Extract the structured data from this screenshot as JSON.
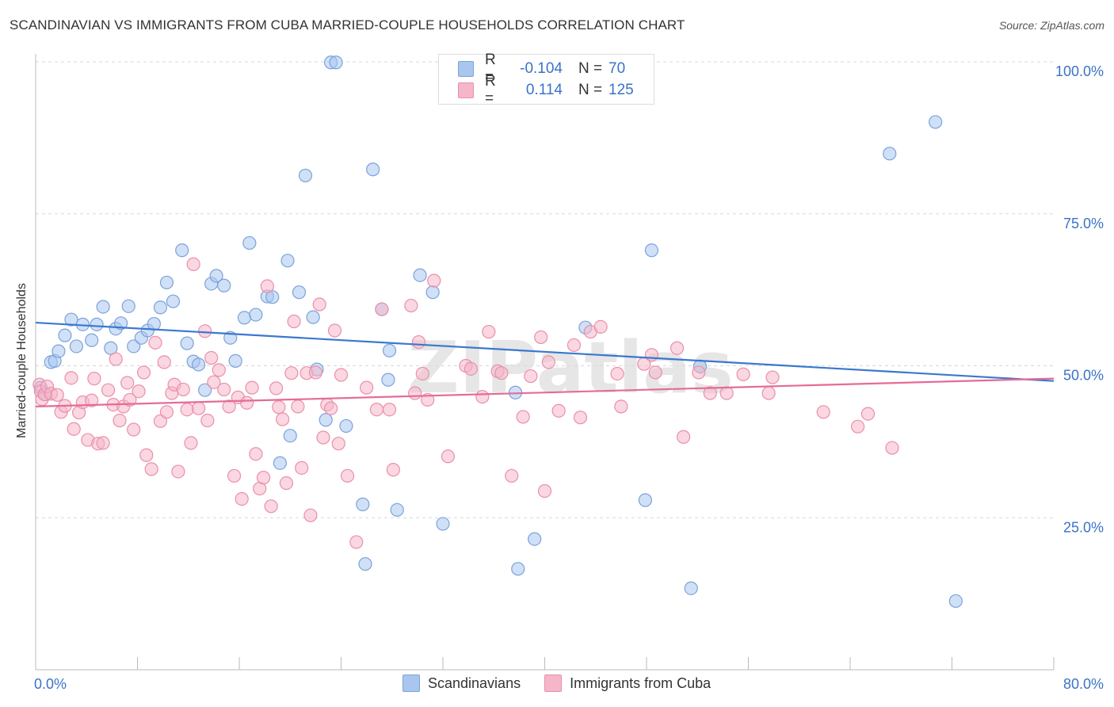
{
  "title": "SCANDINAVIAN VS IMMIGRANTS FROM CUBA MARRIED-COUPLE HOUSEHOLDS CORRELATION CHART",
  "source": "Source: ZipAtlas.com",
  "watermark": "ZIPatlas",
  "legend_stats": [
    {
      "r_label": "R =",
      "r_value": "-0.104",
      "n_label": "N =",
      "n_value": "70"
    },
    {
      "r_label": "R =",
      "r_value": "0.114",
      "n_label": "N =",
      "n_value": "125"
    }
  ],
  "legend_bottom": [
    "Scandinavians",
    "Immigrants from Cuba"
  ],
  "colors": {
    "blue_fill": "#a9c6ee",
    "blue_stroke": "#7aa3db",
    "blue_line": "#3a78d0",
    "pink_fill": "#f5b6c9",
    "pink_stroke": "#ea8fab",
    "pink_line": "#e56b98",
    "axis_text": "#3a73c7",
    "grid": "#d8d8d8"
  },
  "chart_data": {
    "type": "scatter",
    "title": "SCANDINAVIAN VS IMMIGRANTS FROM CUBA MARRIED-COUPLE HOUSEHOLDS CORRELATION CHART",
    "xlabel": "",
    "ylabel": "Married-couple Households",
    "xlim": [
      0,
      80
    ],
    "ylim": [
      0,
      100
    ],
    "x_tick_labels": [
      "0.0%",
      "80.0%"
    ],
    "y_tick_labels": [
      "25.0%",
      "50.0%",
      "75.0%",
      "100.0%"
    ],
    "y_ticks": [
      25,
      50,
      75,
      100
    ],
    "grid": true,
    "legend_position": "top-center",
    "series": [
      {
        "name": "Scandinavians",
        "color": "#a9c6ee",
        "trend": {
          "x": [
            0,
            80
          ],
          "y": [
            57.1,
            47.5
          ]
        },
        "points": [
          [
            0.4,
            46.4
          ],
          [
            0.8,
            45.3
          ],
          [
            1.2,
            50.6
          ],
          [
            1.5,
            50.8
          ],
          [
            1.8,
            52.4
          ],
          [
            2.3,
            55.0
          ],
          [
            2.8,
            57.6
          ],
          [
            3.2,
            53.2
          ],
          [
            3.7,
            56.8
          ],
          [
            4.4,
            54.2
          ],
          [
            4.8,
            56.8
          ],
          [
            5.3,
            59.7
          ],
          [
            5.9,
            52.9
          ],
          [
            6.3,
            56.1
          ],
          [
            6.7,
            57.0
          ],
          [
            7.3,
            59.8
          ],
          [
            7.7,
            53.2
          ],
          [
            8.3,
            54.6
          ],
          [
            8.8,
            55.8
          ],
          [
            9.3,
            56.9
          ],
          [
            9.8,
            59.6
          ],
          [
            10.3,
            63.7
          ],
          [
            10.8,
            60.6
          ],
          [
            11.5,
            69.0
          ],
          [
            11.9,
            53.7
          ],
          [
            12.4,
            50.7
          ],
          [
            12.8,
            50.2
          ],
          [
            13.3,
            46.0
          ],
          [
            13.8,
            63.5
          ],
          [
            14.2,
            64.8
          ],
          [
            14.8,
            63.2
          ],
          [
            15.3,
            54.6
          ],
          [
            15.7,
            50.8
          ],
          [
            16.4,
            57.9
          ],
          [
            16.8,
            70.2
          ],
          [
            17.3,
            58.4
          ],
          [
            18.2,
            61.4
          ],
          [
            18.6,
            61.3
          ],
          [
            19.2,
            34.0
          ],
          [
            19.8,
            67.3
          ],
          [
            20.0,
            38.5
          ],
          [
            20.7,
            62.1
          ],
          [
            21.2,
            81.3
          ],
          [
            21.8,
            58.0
          ],
          [
            22.1,
            49.4
          ],
          [
            22.8,
            41.1
          ],
          [
            23.2,
            99.9
          ],
          [
            23.6,
            99.9
          ],
          [
            24.4,
            40.1
          ],
          [
            25.7,
            27.2
          ],
          [
            25.9,
            17.4
          ],
          [
            26.5,
            82.3
          ],
          [
            27.2,
            59.3
          ],
          [
            27.8,
            52.5
          ],
          [
            27.7,
            47.7
          ],
          [
            28.4,
            26.3
          ],
          [
            30.2,
            64.9
          ],
          [
            31.2,
            62.1
          ],
          [
            32.0,
            24.0
          ],
          [
            37.7,
            45.6
          ],
          [
            37.9,
            16.6
          ],
          [
            39.2,
            21.5
          ],
          [
            43.2,
            56.3
          ],
          [
            47.9,
            27.9
          ],
          [
            48.4,
            69.0
          ],
          [
            51.5,
            13.4
          ],
          [
            52.2,
            49.9
          ],
          [
            67.1,
            84.9
          ],
          [
            70.7,
            90.1
          ],
          [
            72.3,
            11.3
          ]
        ]
      },
      {
        "name": "Immigrants from Cuba",
        "color": "#f5b6c9",
        "trend": {
          "x": [
            0,
            80
          ],
          "y": [
            43.3,
            47.9
          ]
        },
        "points": [
          [
            0.3,
            46.9
          ],
          [
            0.4,
            45.8
          ],
          [
            0.5,
            44.5
          ],
          [
            0.7,
            45.3
          ],
          [
            0.9,
            46.6
          ],
          [
            1.2,
            45.4
          ],
          [
            1.7,
            45.2
          ],
          [
            2.0,
            42.4
          ],
          [
            2.3,
            43.4
          ],
          [
            2.8,
            48.0
          ],
          [
            3.0,
            39.6
          ],
          [
            3.4,
            42.3
          ],
          [
            3.7,
            44.0
          ],
          [
            4.1,
            37.8
          ],
          [
            4.4,
            44.3
          ],
          [
            4.6,
            47.9
          ],
          [
            4.9,
            37.2
          ],
          [
            5.3,
            37.3
          ],
          [
            5.7,
            46.0
          ],
          [
            6.1,
            43.6
          ],
          [
            6.3,
            51.1
          ],
          [
            6.6,
            41.0
          ],
          [
            6.9,
            43.3
          ],
          [
            7.2,
            47.2
          ],
          [
            7.4,
            44.4
          ],
          [
            7.7,
            39.5
          ],
          [
            8.1,
            45.8
          ],
          [
            8.5,
            48.9
          ],
          [
            8.7,
            35.3
          ],
          [
            9.1,
            33.0
          ],
          [
            9.4,
            53.8
          ],
          [
            9.8,
            40.9
          ],
          [
            10.1,
            50.6
          ],
          [
            10.3,
            42.4
          ],
          [
            10.7,
            45.5
          ],
          [
            10.9,
            46.9
          ],
          [
            11.2,
            32.6
          ],
          [
            11.6,
            46.1
          ],
          [
            11.9,
            42.8
          ],
          [
            12.2,
            37.3
          ],
          [
            12.4,
            66.7
          ],
          [
            12.8,
            43.0
          ],
          [
            13.3,
            55.7
          ],
          [
            13.5,
            41.0
          ],
          [
            13.8,
            51.3
          ],
          [
            14.0,
            47.3
          ],
          [
            14.4,
            49.3
          ],
          [
            14.8,
            46.1
          ],
          [
            15.2,
            43.3
          ],
          [
            15.6,
            31.9
          ],
          [
            15.9,
            44.8
          ],
          [
            16.2,
            28.1
          ],
          [
            16.6,
            43.9
          ],
          [
            17.0,
            46.4
          ],
          [
            17.3,
            35.5
          ],
          [
            17.6,
            29.8
          ],
          [
            17.9,
            31.6
          ],
          [
            18.2,
            63.1
          ],
          [
            18.5,
            26.9
          ],
          [
            18.9,
            46.3
          ],
          [
            19.1,
            43.2
          ],
          [
            19.4,
            41.2
          ],
          [
            19.7,
            30.7
          ],
          [
            20.1,
            48.8
          ],
          [
            20.3,
            57.3
          ],
          [
            20.6,
            43.3
          ],
          [
            20.9,
            33.2
          ],
          [
            21.3,
            48.8
          ],
          [
            21.6,
            25.4
          ],
          [
            22.0,
            48.9
          ],
          [
            22.3,
            60.1
          ],
          [
            22.6,
            38.2
          ],
          [
            22.9,
            43.6
          ],
          [
            23.2,
            43.0
          ],
          [
            23.5,
            55.8
          ],
          [
            23.8,
            37.2
          ],
          [
            24.0,
            48.5
          ],
          [
            24.5,
            31.9
          ],
          [
            25.2,
            21.0
          ],
          [
            26.0,
            46.4
          ],
          [
            26.8,
            42.8
          ],
          [
            27.2,
            59.3
          ],
          [
            27.8,
            42.8
          ],
          [
            28.1,
            32.9
          ],
          [
            29.5,
            59.9
          ],
          [
            29.8,
            45.5
          ],
          [
            30.1,
            53.9
          ],
          [
            30.4,
            48.7
          ],
          [
            30.8,
            44.4
          ],
          [
            31.3,
            64.0
          ],
          [
            32.4,
            35.1
          ],
          [
            33.8,
            50.0
          ],
          [
            34.2,
            49.5
          ],
          [
            35.1,
            44.9
          ],
          [
            35.6,
            55.6
          ],
          [
            36.3,
            49.1
          ],
          [
            36.6,
            48.8
          ],
          [
            37.4,
            31.9
          ],
          [
            38.3,
            41.6
          ],
          [
            38.9,
            48.3
          ],
          [
            39.7,
            54.7
          ],
          [
            40.0,
            29.4
          ],
          [
            40.3,
            50.6
          ],
          [
            41.1,
            42.6
          ],
          [
            42.3,
            53.4
          ],
          [
            42.8,
            41.5
          ],
          [
            43.6,
            55.6
          ],
          [
            44.4,
            56.4
          ],
          [
            45.7,
            48.7
          ],
          [
            46.0,
            43.3
          ],
          [
            47.8,
            50.3
          ],
          [
            48.4,
            51.8
          ],
          [
            48.7,
            48.9
          ],
          [
            50.4,
            52.9
          ],
          [
            50.9,
            38.3
          ],
          [
            52.1,
            48.9
          ],
          [
            53.0,
            45.5
          ],
          [
            54.3,
            45.5
          ],
          [
            55.6,
            48.6
          ],
          [
            57.6,
            45.5
          ],
          [
            57.9,
            48.1
          ],
          [
            61.9,
            42.4
          ],
          [
            64.6,
            40.0
          ],
          [
            65.4,
            42.1
          ],
          [
            67.3,
            36.5
          ]
        ]
      }
    ]
  }
}
